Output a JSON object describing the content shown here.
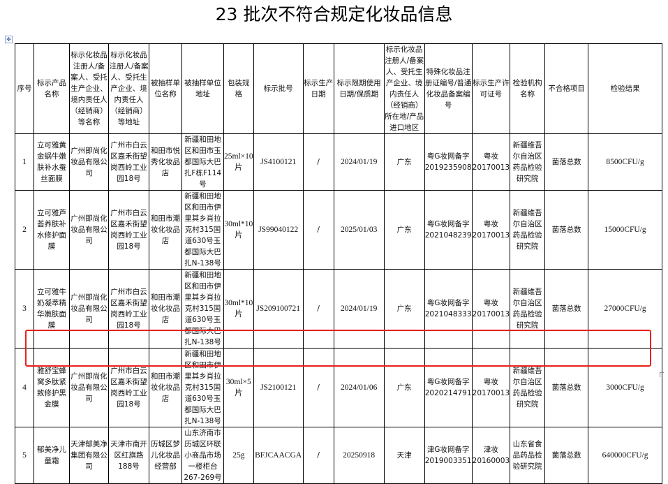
{
  "title": "23 批次不符合规定化妆品信息",
  "highlight_color": "#e8201a",
  "headers": [
    "序号",
    "标示产品名称",
    "标示化妆品注册人/备案人、受托生产企业、境内责任人（经销商）等名称",
    "标示化妆品注册人/备案人、受托生产企业、境内责任人（经销商）等地址",
    "被抽样单位名称",
    "被抽样单位地址",
    "包装规格",
    "标示批号",
    "标示生产日期",
    "标示限期使用日期/保质期",
    "标示化妆品注册人/备案人、受托生产企业、境内责任人（经销商）所在地/产品进口地区",
    "特殊化妆品注册证编号/普通化妆品备案编号",
    "标示生产许可证号",
    "检验机构名称",
    "不合格项目",
    "检验结果"
  ],
  "rows": [
    [
      "1",
      "立可雅黄金蜗牛嫩肤补水蚕丝面膜",
      "广州即尚化妆品有限公司",
      "广州市白云区嘉禾街望岗西岭工业园18号",
      "和田市悦秀化妆品店",
      "新疆和田地区和田市玉都国际大巴扎F栋F114号",
      "25ml×10片",
      "JS4100121",
      "/",
      "2024/01/19",
      "广东",
      "粤G妆网备字2019235908",
      "粤妆20170013",
      "新疆维吾尔自治区药品检验研究院",
      "菌落总数",
      "8500CFU/g"
    ],
    [
      "2",
      "立可雅芦荟养肤补水修护面膜",
      "广州即尚化妆品有限公司",
      "广州市白云区嘉禾街望岗西岭工业园18号",
      "和田市潮妆化妆品店",
      "新疆和田地区和田市伊里其乡肖拉克村315国道630号玉都国际大巴扎N-138号",
      "30ml*10片",
      "JS99040122",
      "/",
      "2025/01/03",
      "广东",
      "粤G妆网备字2021048239",
      "粤妆20170013",
      "新疆维吾尔自治区药品检验研究院",
      "菌落总数",
      "15000CFU/g"
    ],
    [
      "3",
      "立可雅牛奶凝萃精华嫩肤面膜",
      "广州即尚化妆品有限公司",
      "广州市白云区嘉禾街望岗西岭工业园18号",
      "和田市潮妆化妆品店",
      "新疆和田地区和田市伊里其乡肖拉克村315国道630号玉都国际大巴扎N-138号",
      "30ml*10片",
      "JS209100721",
      "/",
      "2024/01/19",
      "广东",
      "粤G妆网备字2021048333",
      "粤妆20170013",
      "新疆维吾尔自治区药品检验研究院",
      "菌落总数",
      "27000CFU/g"
    ],
    [
      "4",
      "雅舒宝蜂窝多肽紧致修护黑金膜",
      "广州即尚化妆品有限公司",
      "广州市白云区嘉禾街望岗西岭工业园18号",
      "和田市潮妆化妆品店",
      "新疆和田地区和田市伊里其乡肖拉克村315国道630号玉都国际大巴扎N-138号",
      "30ml×5片",
      "JS2100121",
      "/",
      "2024/01/06",
      "广东",
      "粤G妆网备字2020214791",
      "粤妆20170013",
      "新疆维吾尔自治区药品检验研究院",
      "菌落总数",
      "3000CFU/g"
    ],
    [
      "5",
      "郁美净儿童霜",
      "天津郁美净集团有限公司",
      "天津市南开区红旗路188号",
      "历城区梦儿化妆品经营部",
      "山东济南市历城区环联小商品市场一楼柜台267-269号",
      "25g",
      "BFJCAACGA",
      "/",
      "20250918",
      "天津",
      "津G妆网备字2019003351",
      "津妆20160003",
      "山东省食品药品检验研究院",
      "菌落总数",
      "640000CFU/g"
    ]
  ]
}
